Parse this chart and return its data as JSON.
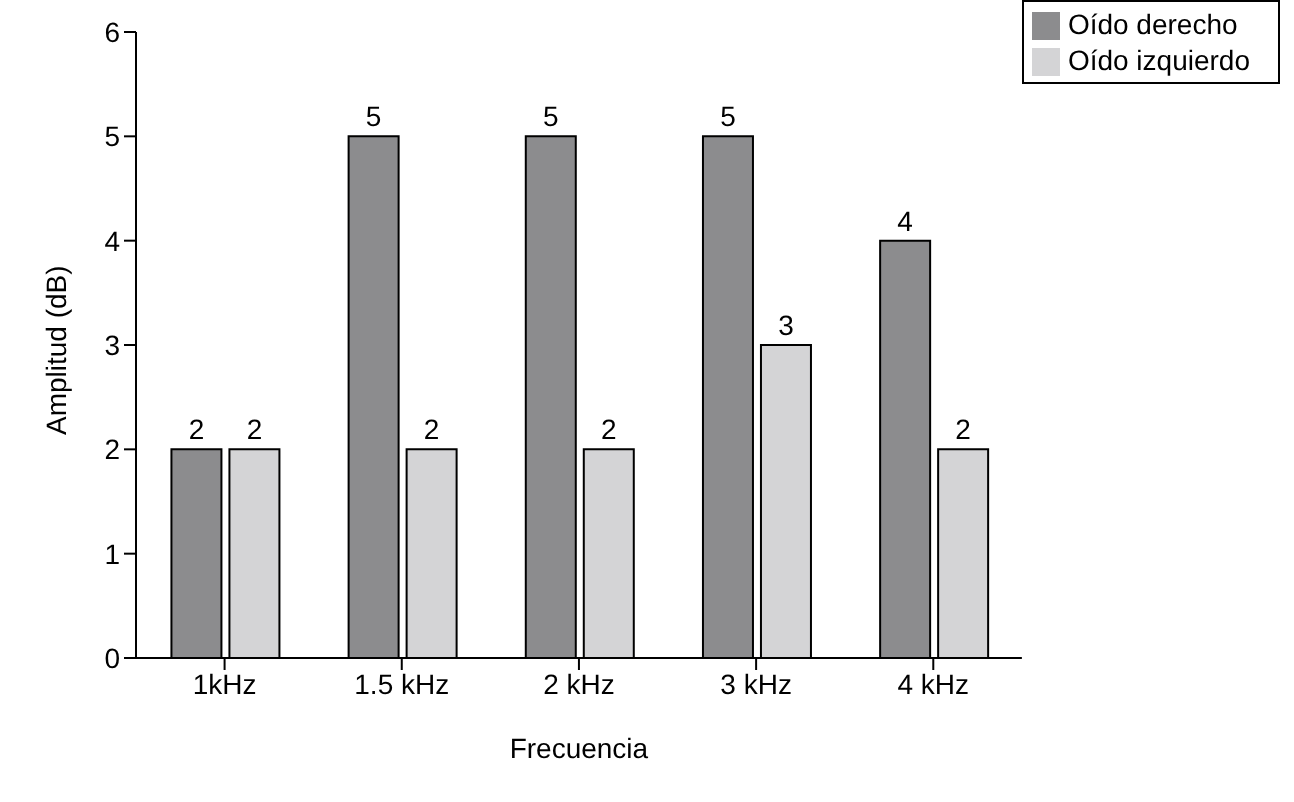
{
  "chart_data": {
    "type": "bar",
    "xlabel": "Frecuencia",
    "ylabel": "Amplitud (dB)",
    "categories": [
      "1kHz",
      "1.5 kHz",
      "2 kHz",
      "3 kHz",
      "4 kHz"
    ],
    "series": [
      {
        "name": "Oído derecho",
        "color": "#8c8c8e",
        "values": [
          2,
          5,
          5,
          5,
          4
        ]
      },
      {
        "name": "Oído izquierdo",
        "color": "#d4d4d6",
        "values": [
          2,
          2,
          2,
          3,
          2
        ]
      }
    ],
    "ylim": [
      0,
      6
    ],
    "yticks": [
      0,
      1,
      2,
      3,
      4,
      5,
      6
    ],
    "grid": false,
    "legend": "top right",
    "data_labels": true
  }
}
